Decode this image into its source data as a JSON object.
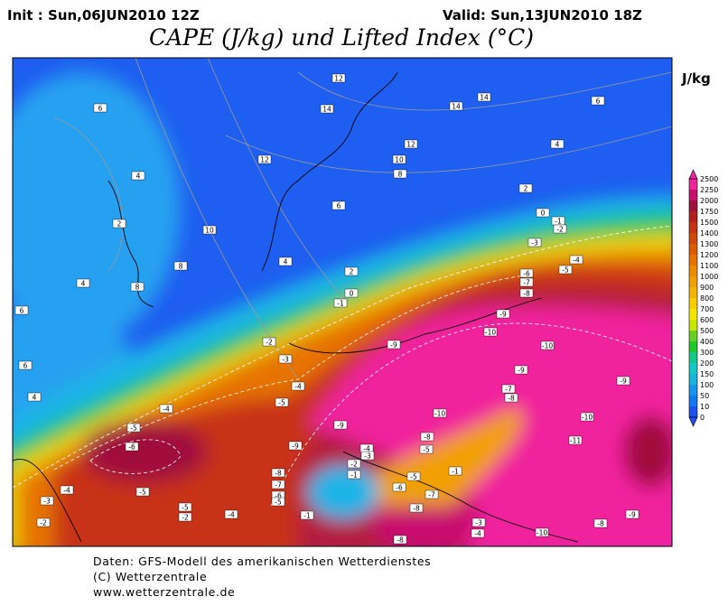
{
  "header": {
    "init": "Init : Sun,06JUN2010 12Z",
    "valid": "Valid: Sun,13JUN2010 18Z",
    "title": "CAPE (J/kg) und Lifted Index (°C)",
    "unit": "J/kg"
  },
  "colorbar": {
    "ticks": [
      2500,
      2250,
      2000,
      1750,
      1500,
      1400,
      1300,
      1200,
      1100,
      1000,
      900,
      800,
      700,
      600,
      500,
      400,
      300,
      200,
      150,
      100,
      50,
      10,
      0
    ],
    "colors": [
      "#f0249c",
      "#c8106e",
      "#a0103c",
      "#b41e1e",
      "#c83214",
      "#d2460a",
      "#dc5a00",
      "#e67300",
      "#eb8c00",
      "#f0a000",
      "#f5b400",
      "#facd00",
      "#f5e600",
      "#c8e600",
      "#64d21e",
      "#1ec828",
      "#14c88c",
      "#14c8c8",
      "#14b4dc",
      "#1496f0",
      "#1478f5",
      "#1e50f0"
    ]
  },
  "contour_labels": [
    12,
    14,
    14,
    14,
    12,
    12,
    10,
    8,
    6,
    10,
    8,
    8,
    6,
    6,
    4,
    2,
    4,
    2,
    4,
    6,
    6,
    4,
    4,
    2,
    0,
    -1,
    0,
    -1,
    -2,
    -3,
    -4,
    -5,
    -6,
    -7,
    -8,
    -9,
    -10,
    -10,
    -9,
    -2,
    -3,
    -4,
    -5,
    -4,
    -5,
    -6,
    -4,
    -3,
    -5,
    -5,
    -2,
    -4,
    -2,
    -1,
    -2,
    -1,
    -9,
    -7,
    -8,
    -10,
    -9,
    -8,
    -9,
    -4,
    -3,
    -5,
    -8,
    -7,
    -6,
    -5,
    -10,
    -11,
    -9,
    -9,
    -8,
    -10,
    -8,
    -7,
    -6,
    -8,
    -3,
    -4,
    -1,
    -5
  ],
  "footer": [
    "Daten: GFS-Modell des amerikanischen Wetterdienstes",
    "(C) Wetterzentrale",
    "www.wetterzentrale.de"
  ]
}
